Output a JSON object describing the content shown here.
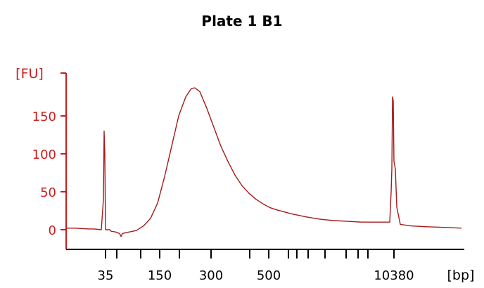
{
  "chart_data": {
    "type": "line",
    "title": "Plate 1 B1",
    "ylabel": "[FU]",
    "xlabel": "[bp]",
    "ylim": [
      -10,
      190
    ],
    "yticks": [
      0,
      50,
      100,
      150
    ],
    "xtick_labels": [
      "35",
      "150",
      "300",
      "500",
      "10380"
    ],
    "series": [
      {
        "values": [
          [
            0,
            2
          ],
          [
            13,
            2
          ],
          [
            32,
            1
          ],
          [
            40,
            1
          ],
          [
            50,
            0
          ],
          [
            53,
            40
          ],
          [
            54,
            130
          ],
          [
            55,
            100
          ],
          [
            56,
            0
          ],
          [
            62,
            0
          ],
          [
            64,
            -2
          ],
          [
            70,
            -3
          ],
          [
            76,
            -5
          ],
          [
            78,
            -9
          ],
          [
            80,
            -5
          ],
          [
            90,
            -3
          ],
          [
            100,
            -1
          ],
          [
            110,
            5
          ],
          [
            120,
            15
          ],
          [
            130,
            35
          ],
          [
            140,
            70
          ],
          [
            150,
            110
          ],
          [
            160,
            150
          ],
          [
            170,
            175
          ],
          [
            178,
            186
          ],
          [
            183,
            187
          ],
          [
            190,
            182
          ],
          [
            200,
            160
          ],
          [
            210,
            135
          ],
          [
            220,
            110
          ],
          [
            230,
            90
          ],
          [
            240,
            72
          ],
          [
            250,
            58
          ],
          [
            260,
            48
          ],
          [
            270,
            40
          ],
          [
            280,
            34
          ],
          [
            290,
            29
          ],
          [
            300,
            26
          ],
          [
            320,
            21
          ],
          [
            340,
            17
          ],
          [
            360,
            14
          ],
          [
            380,
            12
          ],
          [
            400,
            11
          ],
          [
            420,
            10
          ],
          [
            440,
            10
          ],
          [
            460,
            10
          ],
          [
            462,
            50
          ],
          [
            463,
            80
          ],
          [
            464,
            175
          ],
          [
            465,
            170
          ],
          [
            466,
            90
          ],
          [
            468,
            80
          ],
          [
            470,
            30
          ],
          [
            475,
            7
          ],
          [
            490,
            5
          ],
          [
            510,
            4
          ],
          [
            540,
            3
          ],
          [
            562,
            2
          ]
        ]
      }
    ],
    "colors": {
      "axis": "#cc1d1d",
      "line": "#a51a1a",
      "xaxis": "#000000"
    }
  }
}
